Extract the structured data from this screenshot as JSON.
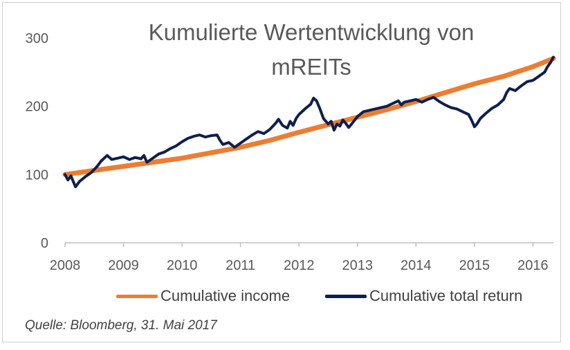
{
  "chart_data": {
    "type": "line",
    "title": "Kumulierte Wertentwicklung von mREITs",
    "xlabel": "",
    "ylabel": "",
    "xlim": [
      2008,
      2016.35
    ],
    "ylim": [
      0,
      300
    ],
    "x_ticks": [
      "2008",
      "2009",
      "2010",
      "2011",
      "2012",
      "2013",
      "2014",
      "2015",
      "2016"
    ],
    "y_ticks": [
      "0",
      "100",
      "200",
      "300"
    ],
    "grid": false,
    "legend_position": "bottom",
    "series": [
      {
        "name": "Cumulative income",
        "color": "#ED7D31",
        "points": [
          [
            2008.0,
            100
          ],
          [
            2008.5,
            106
          ],
          [
            2009.0,
            112
          ],
          [
            2009.5,
            118
          ],
          [
            2010.0,
            124
          ],
          [
            2010.5,
            132
          ],
          [
            2011.0,
            140
          ],
          [
            2011.5,
            150
          ],
          [
            2012.0,
            162
          ],
          [
            2012.5,
            173
          ],
          [
            2013.0,
            184
          ],
          [
            2013.5,
            195
          ],
          [
            2014.0,
            207
          ],
          [
            2014.5,
            220
          ],
          [
            2015.0,
            233
          ],
          [
            2015.5,
            244
          ],
          [
            2016.0,
            258
          ],
          [
            2016.35,
            270
          ]
        ]
      },
      {
        "name": "Cumulative total return",
        "color": "#0E1F4D",
        "points": [
          [
            2008.0,
            100
          ],
          [
            2008.05,
            92
          ],
          [
            2008.1,
            98
          ],
          [
            2008.18,
            82
          ],
          [
            2008.25,
            90
          ],
          [
            2008.35,
            97
          ],
          [
            2008.45,
            103
          ],
          [
            2008.55,
            112
          ],
          [
            2008.62,
            120
          ],
          [
            2008.72,
            128
          ],
          [
            2008.8,
            122
          ],
          [
            2008.9,
            124
          ],
          [
            2009.0,
            126
          ],
          [
            2009.1,
            122
          ],
          [
            2009.2,
            125
          ],
          [
            2009.3,
            123
          ],
          [
            2009.35,
            128
          ],
          [
            2009.4,
            118
          ],
          [
            2009.5,
            124
          ],
          [
            2009.6,
            130
          ],
          [
            2009.7,
            133
          ],
          [
            2009.8,
            138
          ],
          [
            2009.9,
            142
          ],
          [
            2010.0,
            148
          ],
          [
            2010.1,
            153
          ],
          [
            2010.2,
            156
          ],
          [
            2010.3,
            158
          ],
          [
            2010.4,
            155
          ],
          [
            2010.5,
            157
          ],
          [
            2010.6,
            158
          ],
          [
            2010.65,
            150
          ],
          [
            2010.7,
            144
          ],
          [
            2010.8,
            147
          ],
          [
            2010.9,
            140
          ],
          [
            2011.0,
            146
          ],
          [
            2011.1,
            152
          ],
          [
            2011.2,
            158
          ],
          [
            2011.3,
            163
          ],
          [
            2011.4,
            160
          ],
          [
            2011.5,
            166
          ],
          [
            2011.6,
            175
          ],
          [
            2011.65,
            181
          ],
          [
            2011.72,
            172
          ],
          [
            2011.8,
            168
          ],
          [
            2011.85,
            178
          ],
          [
            2011.9,
            172
          ],
          [
            2011.95,
            182
          ],
          [
            2012.0,
            188
          ],
          [
            2012.1,
            196
          ],
          [
            2012.2,
            203
          ],
          [
            2012.25,
            212
          ],
          [
            2012.3,
            208
          ],
          [
            2012.35,
            198
          ],
          [
            2012.42,
            182
          ],
          [
            2012.5,
            174
          ],
          [
            2012.55,
            178
          ],
          [
            2012.6,
            165
          ],
          [
            2012.65,
            174
          ],
          [
            2012.7,
            171
          ],
          [
            2012.75,
            180
          ],
          [
            2012.8,
            175
          ],
          [
            2012.85,
            169
          ],
          [
            2012.9,
            174
          ],
          [
            2013.0,
            185
          ],
          [
            2013.1,
            192
          ],
          [
            2013.2,
            194
          ],
          [
            2013.3,
            196
          ],
          [
            2013.4,
            198
          ],
          [
            2013.5,
            200
          ],
          [
            2013.6,
            204
          ],
          [
            2013.7,
            208
          ],
          [
            2013.75,
            202
          ],
          [
            2013.8,
            206
          ],
          [
            2013.9,
            208
          ],
          [
            2014.0,
            210
          ],
          [
            2014.1,
            206
          ],
          [
            2014.2,
            210
          ],
          [
            2014.3,
            213
          ],
          [
            2014.4,
            207
          ],
          [
            2014.5,
            202
          ],
          [
            2014.6,
            198
          ],
          [
            2014.7,
            196
          ],
          [
            2014.8,
            192
          ],
          [
            2014.9,
            188
          ],
          [
            2014.95,
            180
          ],
          [
            2015.0,
            170
          ],
          [
            2015.05,
            175
          ],
          [
            2015.1,
            182
          ],
          [
            2015.2,
            190
          ],
          [
            2015.3,
            197
          ],
          [
            2015.4,
            202
          ],
          [
            2015.5,
            210
          ],
          [
            2015.55,
            220
          ],
          [
            2015.6,
            226
          ],
          [
            2015.7,
            223
          ],
          [
            2015.8,
            230
          ],
          [
            2015.9,
            236
          ],
          [
            2016.0,
            238
          ],
          [
            2016.1,
            244
          ],
          [
            2016.2,
            250
          ],
          [
            2016.25,
            258
          ],
          [
            2016.3,
            264
          ],
          [
            2016.35,
            272
          ]
        ]
      }
    ],
    "source": "Quelle: Bloomberg, 31. Mai 2017"
  }
}
